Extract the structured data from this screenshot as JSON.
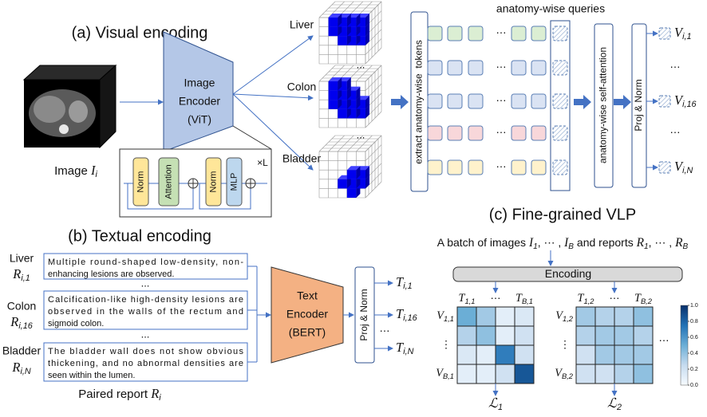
{
  "symbols": {
    "dots": "...",
    "hdots": "⋯",
    "vdots": "⋮"
  },
  "visual_encoding": {
    "title": "(a) Visual encoding",
    "image_label": [
      "Image ",
      {
        "var": "I",
        "sub": "i"
      }
    ],
    "encoder": [
      "Image",
      "Encoder",
      "(ViT)"
    ],
    "block": {
      "norm_1": "Norm",
      "attention": "Attention",
      "norm_2": "Norm",
      "mlp": "MLP",
      "repeat": "×L"
    },
    "organs": [
      "Liver",
      "Colon",
      "Bladder"
    ]
  },
  "tokens": {
    "extract_label": "extract anatomy-wise  tokens",
    "queries_label": "anatomy-wise queries",
    "self_attention": "anatomy-wise self-attention",
    "proj_norm": "Proj & Norm",
    "outputs": [
      [
        {
          "var": "V",
          "sub": "i,1"
        }
      ],
      [
        {
          "var": "V",
          "sub": "i,16"
        }
      ],
      [
        {
          "var": "V",
          "sub": "i,N"
        }
      ]
    ]
  },
  "textual_encoding": {
    "title": "(b) Textual encoding",
    "reports": [
      {
        "organ": "Liver",
        "id": [
          {
            "var": "R",
            "sub": "i,1"
          }
        ],
        "lines": [
          "Multiple round-shaped low-density, non-",
          "enhancing lesions are observed."
        ]
      },
      {
        "organ": "Colon",
        "id": [
          {
            "var": "R",
            "sub": "i,16"
          }
        ],
        "lines": [
          "Calcification-like high-density lesions are",
          "observed in the walls of the rectum and",
          "sigmoid colon."
        ]
      },
      {
        "organ": "Bladder",
        "id": [
          {
            "var": "R",
            "sub": "i,N"
          }
        ],
        "lines": [
          "The bladder wall does not show obvious",
          "thickening, and no abnormal densities are",
          "seen within the lumen."
        ]
      }
    ],
    "caption": [
      "Paired report ",
      {
        "var": "R",
        "sub": "i"
      }
    ],
    "encoder": [
      "Text",
      "Encoder",
      "(BERT)"
    ],
    "proj_norm": "Proj & Norm",
    "outputs": [
      [
        {
          "var": "T",
          "sub": "i,1"
        }
      ],
      [
        {
          "var": "T",
          "sub": "i,16"
        }
      ],
      [
        {
          "var": "T",
          "sub": "i,N"
        }
      ]
    ]
  },
  "vlp": {
    "title": "(c) Fine-grained VLP",
    "batch_caption": [
      "A batch of images ",
      {
        "var": "I",
        "sub": "1"
      },
      ", ⋯ , ",
      {
        "var": "I",
        "sub": "B"
      },
      " and reports ",
      {
        "var": "R",
        "sub": "1"
      },
      ", ⋯ , ",
      {
        "var": "R",
        "sub": "B"
      }
    ],
    "encoding": "Encoding",
    "matrices": [
      {
        "col_first": [
          {
            "var": "T",
            "sub": "1,1"
          }
        ],
        "col_last": [
          {
            "var": "T",
            "sub": "B,1"
          }
        ],
        "row_first": [
          {
            "var": "V",
            "sub": "1,1"
          }
        ],
        "row_last": [
          {
            "var": "V",
            "sub": "B,1"
          }
        ],
        "loss": [
          {
            "var": "ℒ",
            "sub": "1"
          }
        ],
        "values": [
          [
            0.5,
            0.35,
            0.1,
            0.15
          ],
          [
            0.3,
            0.4,
            0.1,
            0.2
          ],
          [
            0.15,
            0.1,
            0.7,
            0.2
          ],
          [
            0.1,
            0.1,
            0.2,
            0.85
          ]
        ]
      },
      {
        "col_first": [
          {
            "var": "T",
            "sub": "1,2"
          }
        ],
        "col_last": [
          {
            "var": "T",
            "sub": "B,2"
          }
        ],
        "row_first": [
          {
            "var": "V",
            "sub": "1,2"
          }
        ],
        "row_last": [
          {
            "var": "V",
            "sub": "B,2"
          }
        ],
        "loss": [
          {
            "var": "ℒ",
            "sub": "2"
          }
        ],
        "values": [
          [
            0.35,
            0.3,
            0.3,
            0.4
          ],
          [
            0.3,
            0.35,
            0.35,
            0.3
          ],
          [
            0.2,
            0.35,
            0.35,
            0.35
          ],
          [
            0.2,
            0.2,
            0.3,
            0.4
          ]
        ]
      }
    ],
    "colorbar": {
      "ticks": [
        {
          "value": 0,
          "label": "0.0"
        },
        {
          "value": 0.2,
          "label": "0.2"
        },
        {
          "value": 0.4,
          "label": "0.4"
        },
        {
          "value": 0.6,
          "label": "0.6"
        },
        {
          "value": 0.8,
          "label": "0.8"
        },
        {
          "value": 1,
          "label": "1.0"
        }
      ]
    }
  }
}
